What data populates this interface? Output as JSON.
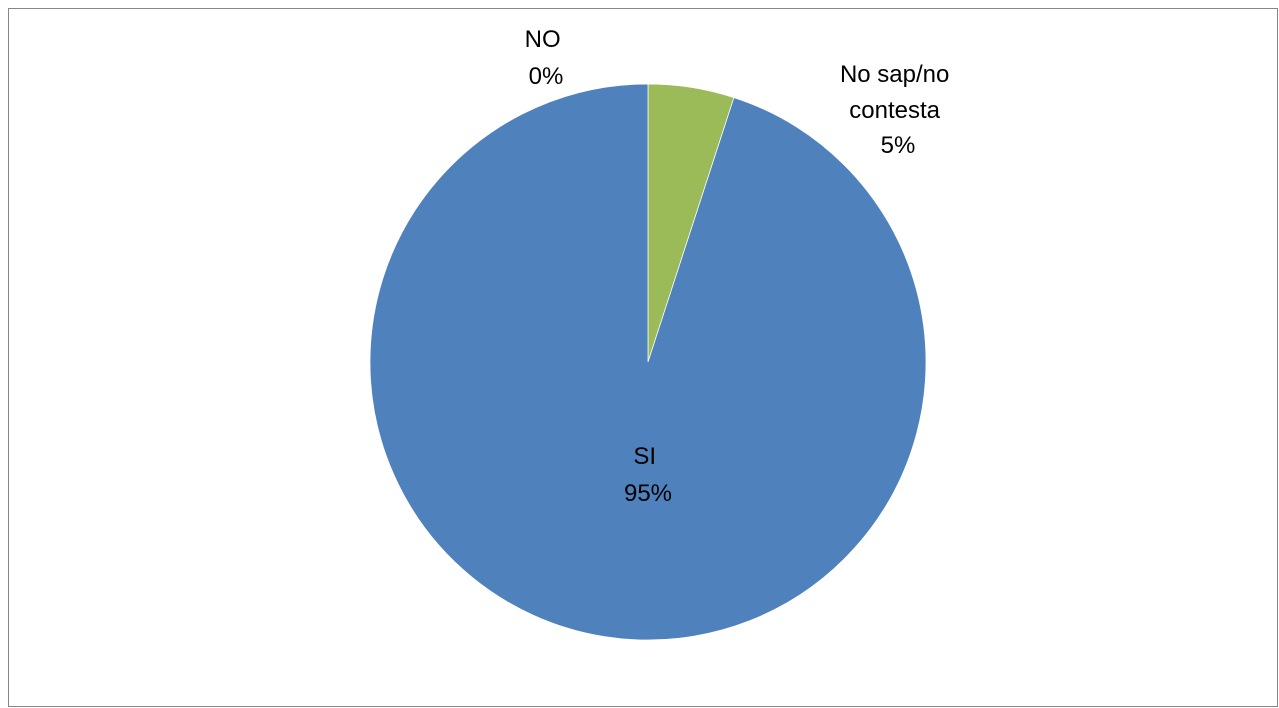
{
  "chart_data": {
    "type": "pie",
    "title": "",
    "start_angle_deg": 0,
    "direction": "clockwise",
    "slices": [
      {
        "label": "SI",
        "value": 95,
        "pct_label": "95%",
        "color": "#4F81BD"
      },
      {
        "label": "NO",
        "value": 0,
        "pct_label": "0%",
        "color": "#C0504D"
      },
      {
        "label": "No sap/no contesta",
        "value": 5,
        "pct_label": "5%",
        "color": "#9BBB59"
      }
    ]
  }
}
